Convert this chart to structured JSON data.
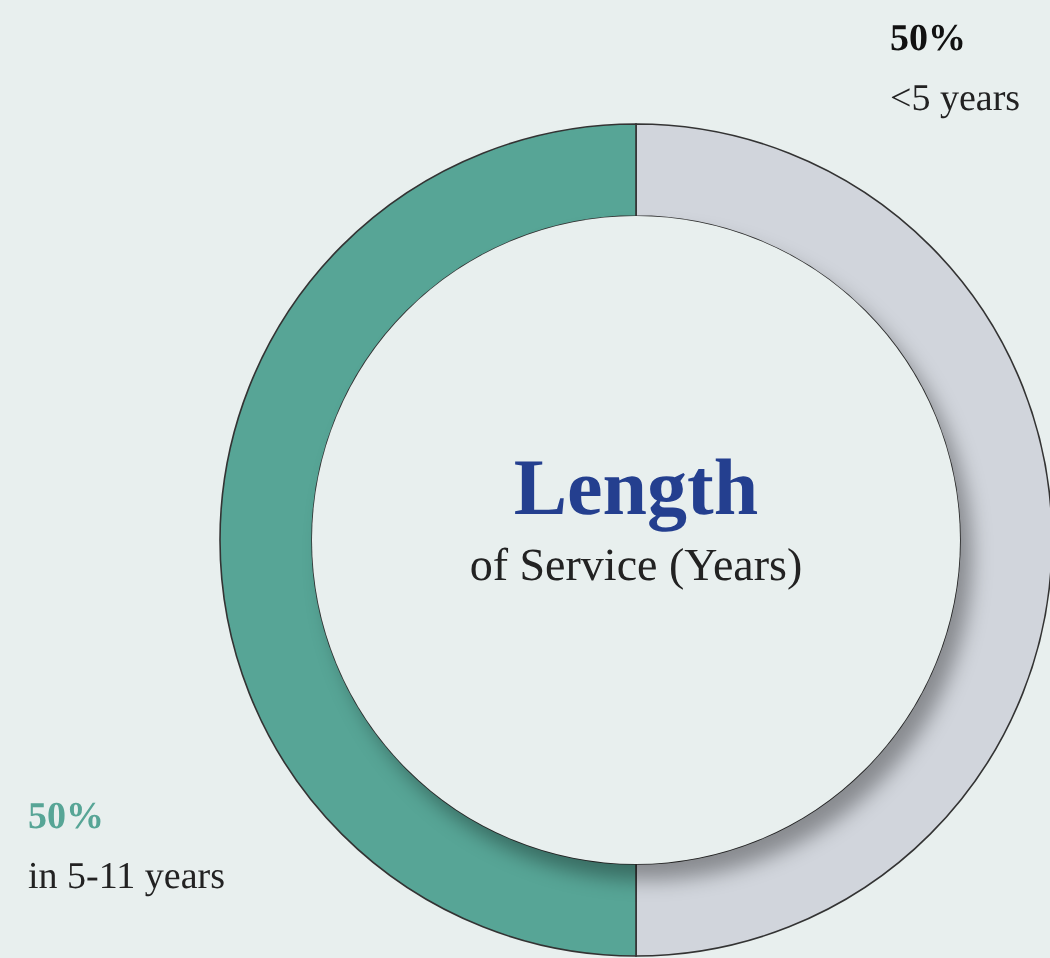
{
  "chart_data": {
    "type": "donut",
    "title": "Length",
    "subtitle": "of Service (Years)",
    "categories": [
      "<5 years",
      "in 5-11 years"
    ],
    "values": [
      50,
      50
    ],
    "value_labels": [
      "50%",
      "50%"
    ],
    "colors": [
      "#d1d5dc",
      "#57a596"
    ]
  }
}
